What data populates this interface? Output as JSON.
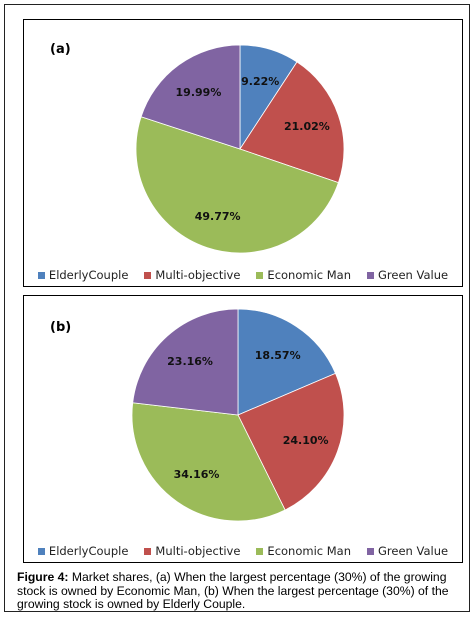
{
  "chart_data": [
    {
      "type": "pie",
      "panel_label": "(a)",
      "categories": [
        "ElderlyCouple",
        "Multi-objective",
        "Economic Man",
        "Green Value"
      ],
      "values": [
        9.22,
        21.02,
        49.77,
        19.99
      ],
      "value_labels": [
        "9.22%",
        "21.02%",
        "49.77%",
        "19.99%"
      ],
      "colors": [
        "#4f81bd",
        "#c0504d",
        "#9bbb59",
        "#8064a2"
      ],
      "legend": "bottom",
      "start_angle_deg": 0,
      "direction": "clockwise"
    },
    {
      "type": "pie",
      "panel_label": "(b)",
      "categories": [
        "ElderlyCouple",
        "Multi-objective",
        "Economic Man",
        "Green Value"
      ],
      "values": [
        18.57,
        24.1,
        34.16,
        23.16
      ],
      "value_labels": [
        "18.57%",
        "24.10%",
        "34.16%",
        "23.16%"
      ],
      "colors": [
        "#4f81bd",
        "#c0504d",
        "#9bbb59",
        "#8064a2"
      ],
      "legend": "bottom",
      "start_angle_deg": 0,
      "direction": "clockwise"
    }
  ],
  "caption": {
    "lead": "Figure 4:",
    "text": " Market shares, (a) When the largest percentage (30%) of the growing stock is owned by Economic Man, (b) When the largest percentage (30%) of the growing stock is owned by Elderly Couple."
  }
}
